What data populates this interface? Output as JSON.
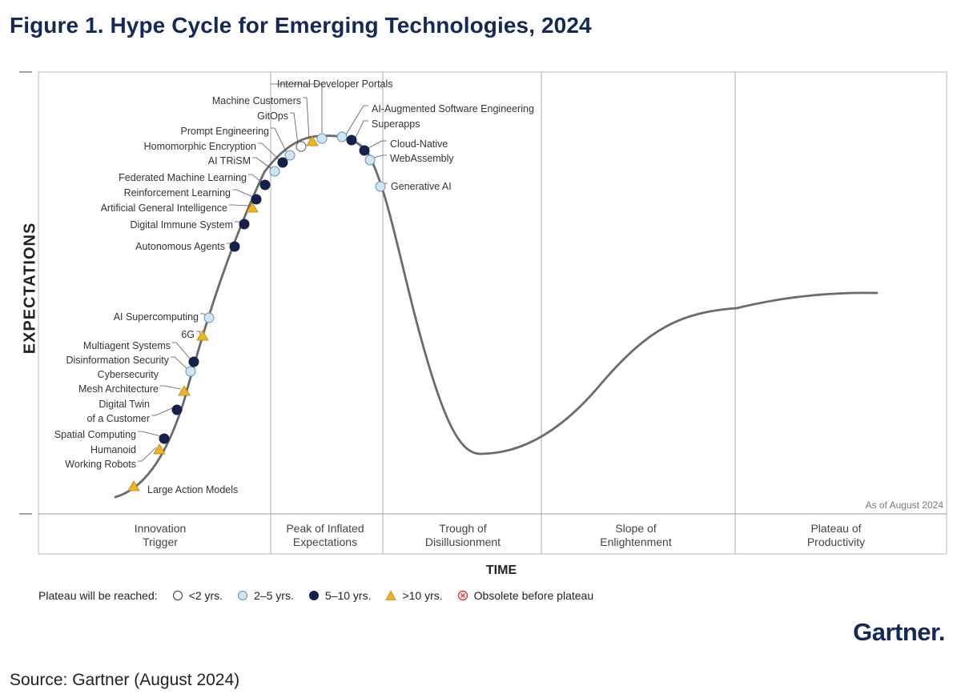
{
  "figure_title": "Figure 1. Hype Cycle for Emerging Technologies, 2024",
  "y_axis_label": "EXPECTATIONS",
  "x_axis_label": "TIME",
  "as_of": "As of August 2024",
  "phases": [
    "Innovation\nTrigger",
    "Peak of Inflated\nExpectations",
    "Trough of\nDisillusionment",
    "Slope of\nEnlightenment",
    "Plateau of\nProductivity"
  ],
  "legend": {
    "title": "Plateau will be reached:",
    "items": [
      {
        "key": "lt2",
        "label": "<2 yrs."
      },
      {
        "key": "2to5",
        "label": "2–5 yrs."
      },
      {
        "key": "5to10",
        "label": "5–10 yrs."
      },
      {
        "key": "gt10",
        "label": ">10 yrs."
      },
      {
        "key": "obsolete",
        "label": "Obsolete before plateau"
      }
    ]
  },
  "marker_colors": {
    "lt2": "#ffffff",
    "2to5": "#cfe4f5",
    "5to10": "#12224a",
    "gt10": "#f0b323",
    "obsolete": "#d93a3a",
    "curve": "#6b6b6b"
  },
  "technologies": [
    {
      "name": "Large Action Models",
      "plateau": "gt10"
    },
    {
      "name": "Humanoid\nWorking Robots",
      "plateau": "gt10"
    },
    {
      "name": "Spatial Computing",
      "plateau": "5to10"
    },
    {
      "name": "Digital Twin\nof a Customer",
      "plateau": "5to10"
    },
    {
      "name": "Cybersecurity\nMesh Architecture",
      "plateau": "gt10"
    },
    {
      "name": "Disinformation Security",
      "plateau": "2to5"
    },
    {
      "name": "Multiagent Systems",
      "plateau": "5to10"
    },
    {
      "name": "6G",
      "plateau": "gt10"
    },
    {
      "name": "AI Supercomputing",
      "plateau": "2to5"
    },
    {
      "name": "Autonomous Agents",
      "plateau": "5to10"
    },
    {
      "name": "Digital Immune System",
      "plateau": "5to10"
    },
    {
      "name": "Artificial General Intelligence",
      "plateau": "gt10"
    },
    {
      "name": "Reinforcement Learning",
      "plateau": "5to10"
    },
    {
      "name": "Federated Machine Learning",
      "plateau": "5to10"
    },
    {
      "name": "AI TRiSM",
      "plateau": "2to5"
    },
    {
      "name": "Homomorphic Encryption",
      "plateau": "5to10"
    },
    {
      "name": "Prompt Engineering",
      "plateau": "2to5"
    },
    {
      "name": "GitOps",
      "plateau": "lt2"
    },
    {
      "name": "Machine Customers",
      "plateau": "gt10"
    },
    {
      "name": "Internal Developer Portals",
      "plateau": "2to5"
    },
    {
      "name": "AI-Augmented Software Engineering",
      "plateau": "2to5"
    },
    {
      "name": "Superapps",
      "plateau": "5to10"
    },
    {
      "name": "Cloud-Native",
      "plateau": "5to10"
    },
    {
      "name": "WebAssembly",
      "plateau": "2to5"
    },
    {
      "name": "Generative AI",
      "plateau": "2to5"
    }
  ],
  "logo_text": "Gartner.",
  "source": "Source: Gartner (August 2024)"
}
